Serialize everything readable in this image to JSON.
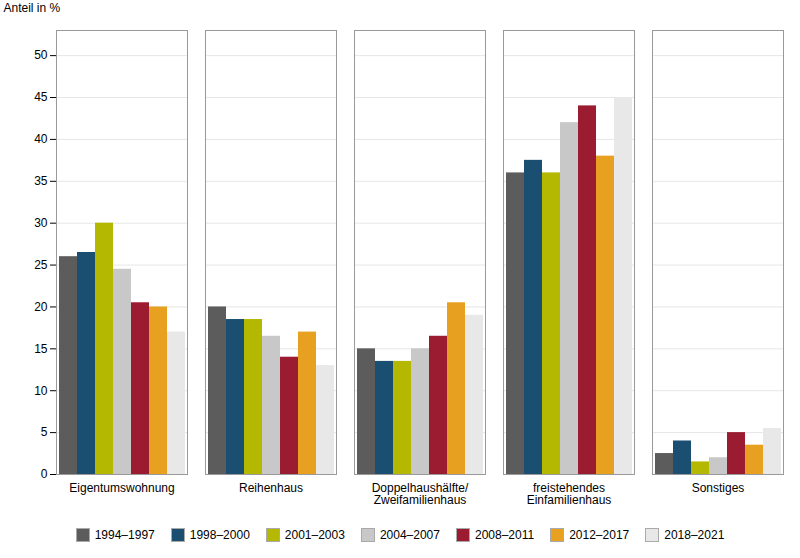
{
  "chart_data": {
    "type": "bar",
    "ylabel": "Anteil in %",
    "categories": [
      "Eigentumswohnung",
      "Reihenhaus",
      "Doppelhaushälfte/\nZweifamilienhaus",
      "freistehendes\nEinfamilienhaus",
      "Sonstiges"
    ],
    "series": [
      {
        "name": "1994–1997",
        "color": "#5c5c5c",
        "values": [
          26,
          20,
          15,
          36,
          2.5
        ]
      },
      {
        "name": "1998–2000",
        "color": "#1b4f72",
        "values": [
          26.5,
          18.5,
          13.5,
          37.5,
          4
        ]
      },
      {
        "name": "2001–2003",
        "color": "#b5b800",
        "values": [
          30,
          18.5,
          13.5,
          36,
          1.5
        ]
      },
      {
        "name": "2004–2007",
        "color": "#c8c8c8",
        "values": [
          24.5,
          16.5,
          15,
          42,
          2
        ]
      },
      {
        "name": "2008–2011",
        "color": "#9b1c31",
        "values": [
          20.5,
          14,
          16.5,
          44,
          5
        ]
      },
      {
        "name": "2012–2017",
        "color": "#e8a020",
        "values": [
          20,
          17,
          20.5,
          38,
          3.5
        ]
      },
      {
        "name": "2018–2021",
        "color": "#e8e8e8",
        "values": [
          17,
          13,
          19,
          45,
          5.5
        ]
      }
    ],
    "ylim": [
      0,
      53
    ],
    "yticks": [
      0,
      5,
      10,
      15,
      20,
      25,
      30,
      35,
      40,
      45,
      50
    ],
    "grid": true,
    "legend": "bottom"
  }
}
